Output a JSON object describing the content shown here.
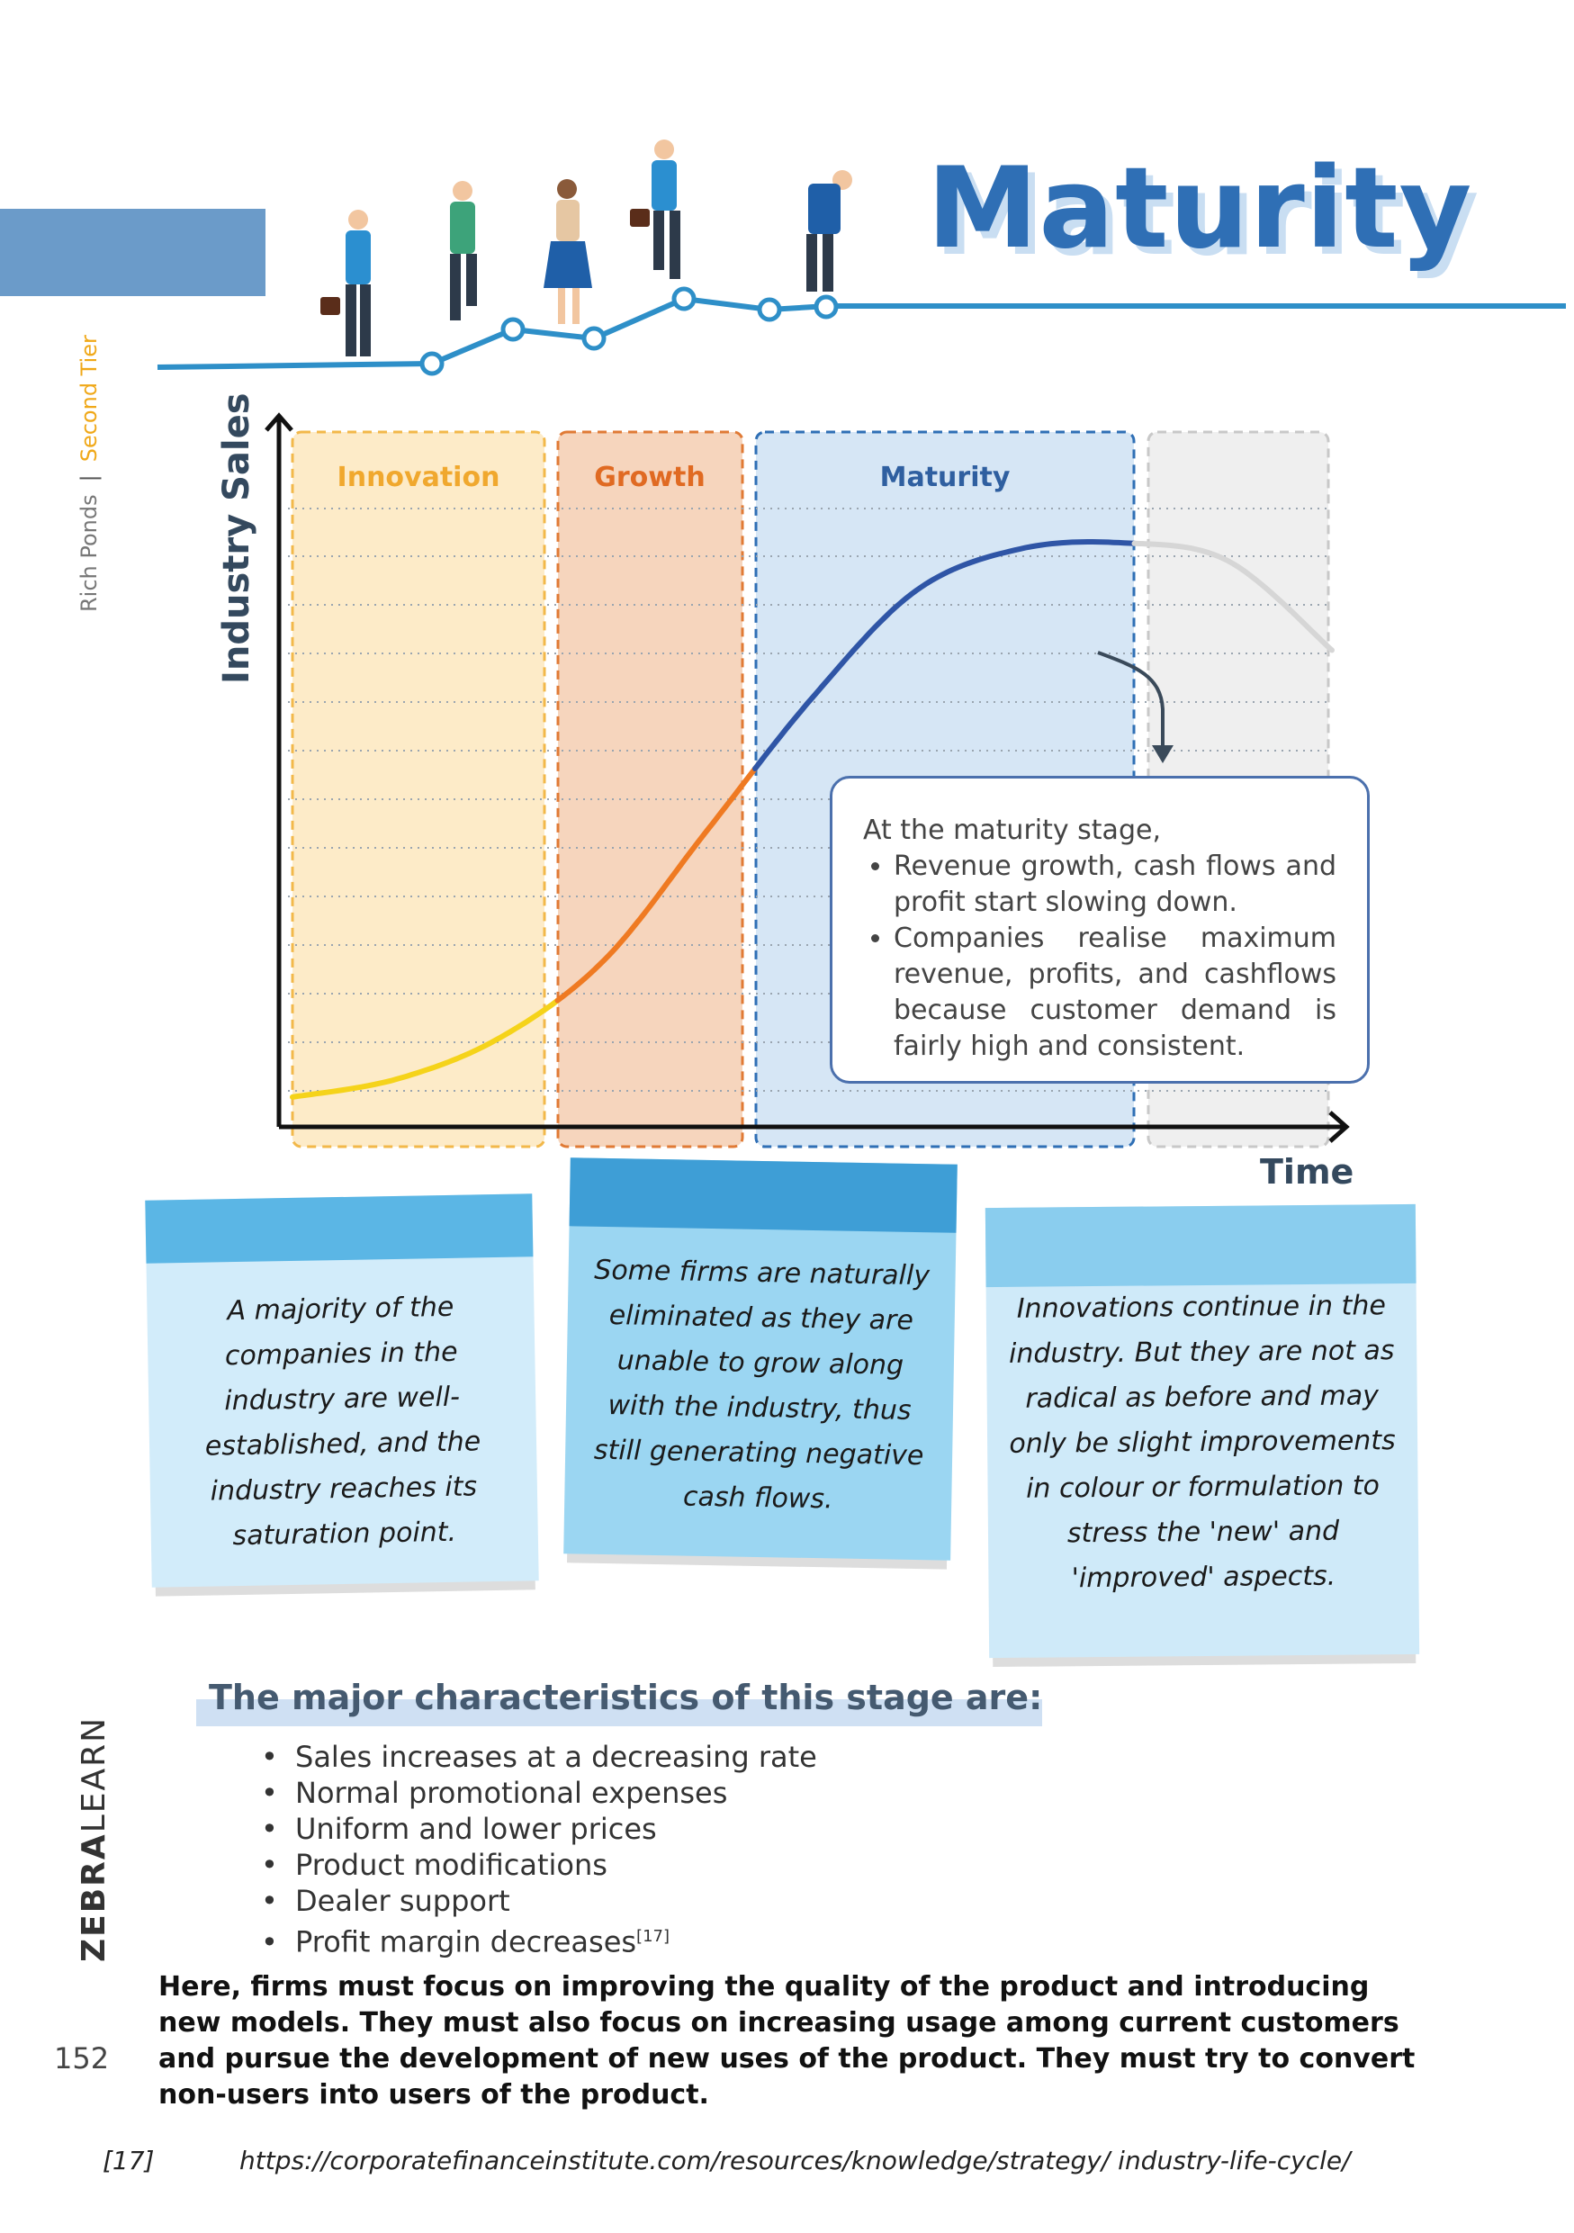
{
  "header": {
    "title": "Maturity"
  },
  "side": {
    "book": "Rich Ponds",
    "separator": "|",
    "tier": "Second Tier",
    "brand_bold": "ZEBRA",
    "brand_light": "LEARN",
    "page_number": "152"
  },
  "colors": {
    "accent": "#2f6fb5",
    "innovation": "#f5c86a",
    "growth": "#e9894a",
    "maturity": "#2f6fb5",
    "decline": "#cfcfcf"
  },
  "chart_data": {
    "type": "line",
    "title": "",
    "xlabel": "Time",
    "ylabel": "Industry Sales",
    "stages": [
      "Innovation",
      "Growth",
      "Maturity",
      ""
    ],
    "series": [
      {
        "x": [
          0,
          1,
          2,
          3,
          4,
          5,
          6,
          7,
          8,
          9,
          10
        ],
        "y": [
          0.05,
          0.08,
          0.15,
          0.28,
          0.5,
          0.72,
          0.9,
          0.97,
          0.98,
          0.95,
          0.8
        ]
      }
    ]
  },
  "callout": {
    "intro": "At the maturity stage,",
    "bullets": [
      "Revenue growth, cash flows and profit start slowing down.",
      "Companies realise maximum revenue, profits, and cashflows because customer demand is fairly high and consistent."
    ]
  },
  "notes": [
    "A majority of the companies in the industry are well-established, and the industry reaches its saturation point.",
    "Some firms are naturally eliminated as they are unable to grow along with the industry, thus still generating negative cash flows.",
    "Innovations continue in the industry. But they are not as radical as before and may only be slight improvements in colour or formulation to stress the 'new' and 'improved' aspects."
  ],
  "characteristics": {
    "heading": "The major characteristics of this stage are:",
    "items": [
      "Sales increases at a decreasing rate",
      "Normal promotional expenses",
      "Uniform and lower prices",
      "Product modifications",
      "Dealer support",
      "Profit margin decreases"
    ],
    "last_ref": "[17]"
  },
  "paragraph": "Here, firms must focus on improving the quality of the product and introducing new models. They must also focus on increasing usage among current customers and pursue the development of new uses of the product. They must try to convert non-users into users of the product.",
  "footnote": {
    "number": "[17]",
    "url": "https://corporatefinanceinstitute.com/resources/knowledge/strategy/ industry-life-cycle/"
  }
}
